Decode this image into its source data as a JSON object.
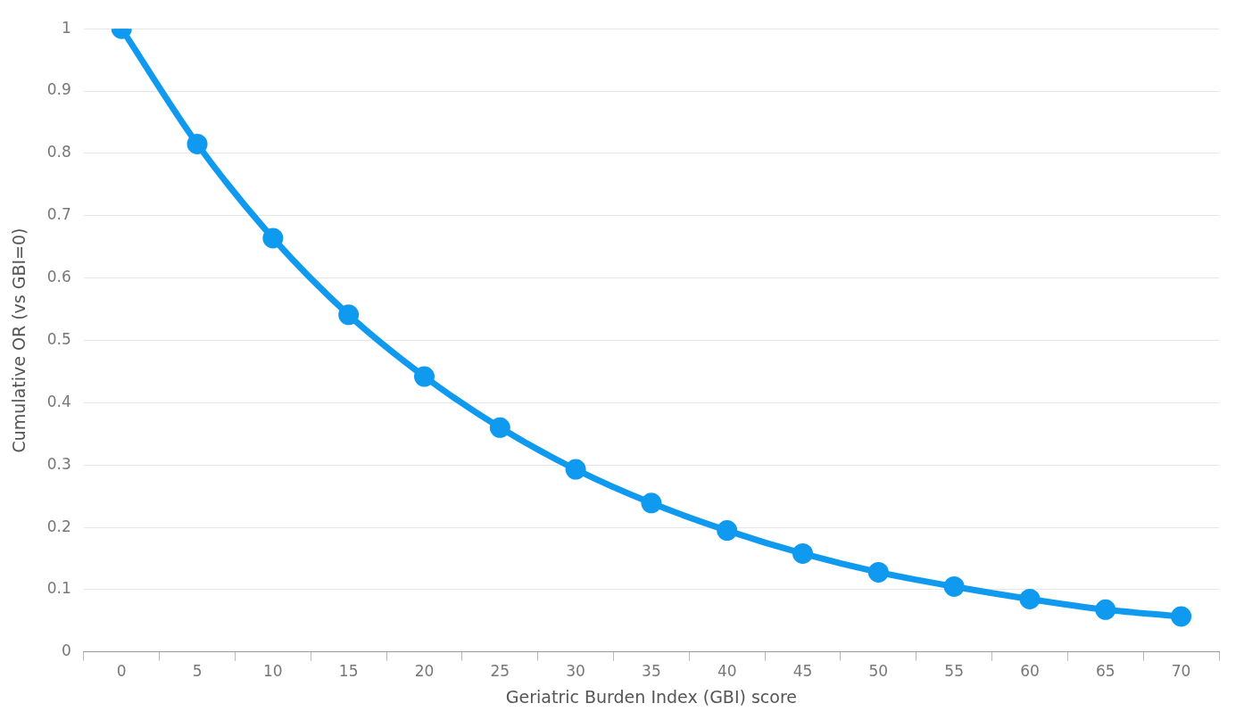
{
  "chart_data": {
    "type": "line",
    "xlabel": "Geriatric Burden Index (GBI) score",
    "ylabel": "Cumulative OR (vs GBI=0)",
    "categories": [
      "0",
      "5",
      "10",
      "15",
      "20",
      "25",
      "30",
      "35",
      "40",
      "45",
      "50",
      "55",
      "60",
      "65",
      "70"
    ],
    "series": [
      {
        "color": "#0f9af0",
        "values": [
          1,
          0.815,
          0.664,
          0.541,
          0.442,
          0.36,
          0.293,
          0.239,
          0.195,
          0.158,
          0.128,
          0.105,
          0.085,
          0.068,
          0.057
        ]
      }
    ],
    "ylim": [
      0,
      1
    ],
    "yticks": [
      0,
      0.1,
      0.2,
      0.3,
      0.4,
      0.5,
      0.6,
      0.7,
      0.8,
      0.9,
      1
    ],
    "grid": "y",
    "legend": false,
    "marker": "circle",
    "line_style": "solid"
  }
}
